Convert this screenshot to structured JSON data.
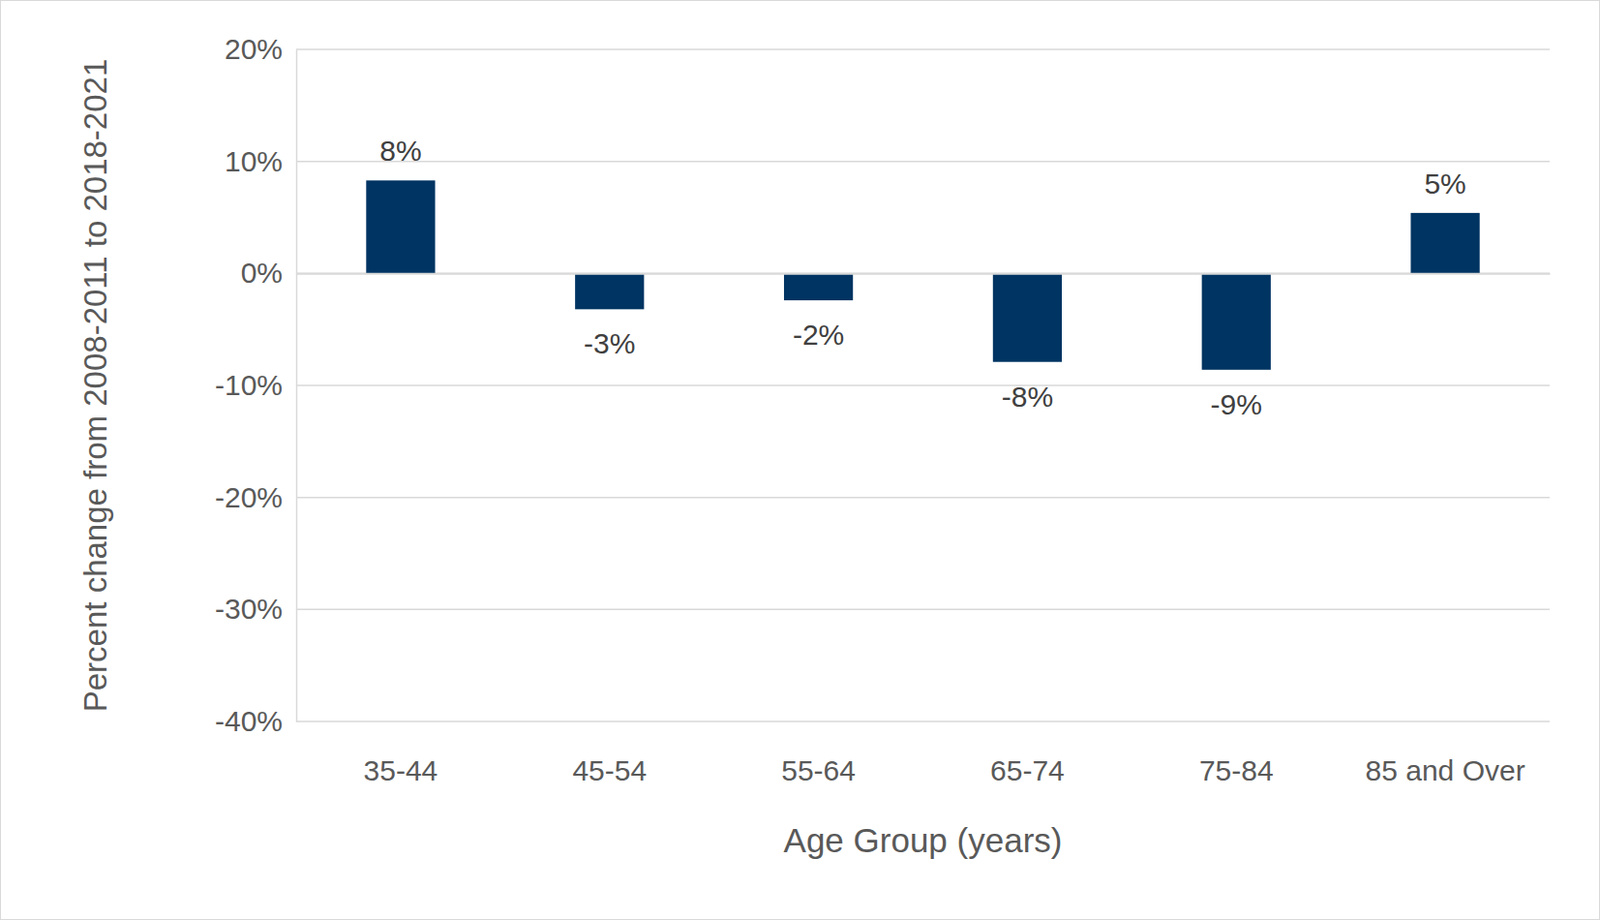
{
  "chart_data": {
    "type": "bar",
    "x_label": "Age Group (years)",
    "y_label": "Percent change from 2008-2011 to 2018-2021",
    "categories": [
      "35-44",
      "45-54",
      "55-64",
      "65-74",
      "75-84",
      "85 and Over"
    ],
    "values": [
      8.3,
      -3.2,
      -2.4,
      -7.9,
      -8.6,
      5.4
    ],
    "value_labels": [
      "8%",
      "-3%",
      "-2%",
      "-8%",
      "-9%",
      "5%"
    ],
    "color": "#003462",
    "ylim": [
      -40,
      20
    ],
    "yticks": [
      {
        "value": -40,
        "label": "-40%"
      },
      {
        "value": -30,
        "label": "-30%"
      },
      {
        "value": -20,
        "label": "-20%"
      },
      {
        "value": -10,
        "label": "-10%"
      },
      {
        "value": 0,
        "label": "0%"
      },
      {
        "value": 10,
        "label": "10%"
      },
      {
        "value": 20,
        "label": "20%"
      }
    ],
    "grid": true,
    "data_labels": true
  }
}
